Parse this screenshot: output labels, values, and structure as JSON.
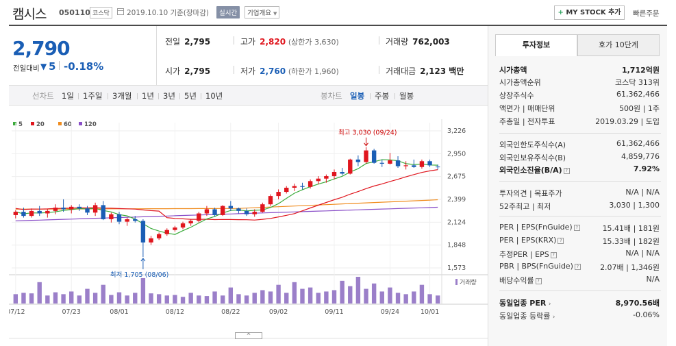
{
  "header": {
    "company_name": "캠시스",
    "stock_code": "050110",
    "market": "코스닥",
    "date_text": "2019.10.10  기준(장마감)",
    "realtime_label": "실시간",
    "overview_label": "기업개요",
    "overview_chevron": "▼",
    "mystock_plus": "+",
    "mystock_label": "MY STOCK 추가",
    "quick_order_label": "빠른주문"
  },
  "price": {
    "current": "2,790",
    "change_label": "전일대비",
    "change_arrow": "▼",
    "change_amount": "5",
    "change_pct": "-0.18%"
  },
  "stats": {
    "prev_close_label": "전일",
    "prev_close": "2,795",
    "high_label": "고가",
    "high": "2,820",
    "upper_limit": "(상한가 3,630)",
    "volume_label": "거래량",
    "volume": "762,003",
    "open_label": "시가",
    "open": "2,795",
    "low_label": "저가",
    "low": "2,760",
    "lower_limit": "(하한가 1,960)",
    "amount_label": "거래대금",
    "amount": "2,123 백만"
  },
  "chart_tabs": {
    "line_chart": "선차트",
    "periods": [
      "1일",
      "1주일",
      "3개월",
      "1년",
      "3년",
      "5년",
      "10년"
    ],
    "candle_chart": "봉차트",
    "candle_periods": [
      "일봉",
      "주봉",
      "월봉"
    ],
    "active_candle": "일봉"
  },
  "colors": {
    "up": "#e0161e",
    "down": "#1a5eb5",
    "ma5": "#3bab3b",
    "ma20": "#e0161e",
    "ma60": "#f08c1e",
    "ma120": "#8a4fc8",
    "volume": "#9b7fc9"
  },
  "chart_data": {
    "type": "candlestick",
    "legend": [
      "5",
      "20",
      "60",
      "120"
    ],
    "y_ticks": [
      3226,
      2950,
      2675,
      2399,
      2124,
      1848,
      1573
    ],
    "y_range": [
      1573,
      3226
    ],
    "x_labels": [
      "07/12",
      "07/23",
      "08/01",
      "08/12",
      "08/22",
      "09/02",
      "09/11",
      "09/24",
      "10/01"
    ],
    "x_label_index": [
      0,
      7,
      13,
      20,
      27,
      33,
      40,
      47,
      52
    ],
    "high_annotation": "최고 3,030 (09/24)",
    "low_annotation": "최저 1,705 (08/06)",
    "volume_legend": "거래량",
    "candles": [
      {
        "o": 2210,
        "h": 2270,
        "l": 2170,
        "c": 2250
      },
      {
        "o": 2250,
        "h": 2300,
        "l": 2180,
        "c": 2200
      },
      {
        "o": 2200,
        "h": 2290,
        "l": 2180,
        "c": 2260
      },
      {
        "o": 2260,
        "h": 2320,
        "l": 2200,
        "c": 2230
      },
      {
        "o": 2230,
        "h": 2280,
        "l": 2180,
        "c": 2260
      },
      {
        "o": 2260,
        "h": 2340,
        "l": 2220,
        "c": 2300
      },
      {
        "o": 2300,
        "h": 2400,
        "l": 2250,
        "c": 2280
      },
      {
        "o": 2280,
        "h": 2330,
        "l": 2230,
        "c": 2310
      },
      {
        "o": 2310,
        "h": 2340,
        "l": 2260,
        "c": 2290
      },
      {
        "o": 2290,
        "h": 2320,
        "l": 2210,
        "c": 2240
      },
      {
        "o": 2240,
        "h": 2360,
        "l": 2200,
        "c": 2330
      },
      {
        "o": 2330,
        "h": 2380,
        "l": 2150,
        "c": 2160
      },
      {
        "o": 2160,
        "h": 2240,
        "l": 2120,
        "c": 2220
      },
      {
        "o": 2220,
        "h": 2250,
        "l": 2100,
        "c": 2130
      },
      {
        "o": 2130,
        "h": 2180,
        "l": 2080,
        "c": 2160
      },
      {
        "o": 2160,
        "h": 2200,
        "l": 2120,
        "c": 2140
      },
      {
        "o": 2140,
        "h": 2160,
        "l": 1705,
        "c": 1880
      },
      {
        "o": 1880,
        "h": 1960,
        "l": 1850,
        "c": 1930
      },
      {
        "o": 1930,
        "h": 2000,
        "l": 1910,
        "c": 1980
      },
      {
        "o": 1980,
        "h": 2050,
        "l": 1960,
        "c": 2030
      },
      {
        "o": 2030,
        "h": 2080,
        "l": 2010,
        "c": 2060
      },
      {
        "o": 2060,
        "h": 2130,
        "l": 2040,
        "c": 2110
      },
      {
        "o": 2110,
        "h": 2160,
        "l": 2080,
        "c": 2140
      },
      {
        "o": 2140,
        "h": 2250,
        "l": 2120,
        "c": 2230
      },
      {
        "o": 2230,
        "h": 2320,
        "l": 2200,
        "c": 2280
      },
      {
        "o": 2280,
        "h": 2300,
        "l": 2190,
        "c": 2210
      },
      {
        "o": 2210,
        "h": 2330,
        "l": 2200,
        "c": 2320
      },
      {
        "o": 2320,
        "h": 2380,
        "l": 2260,
        "c": 2290
      },
      {
        "o": 2290,
        "h": 2300,
        "l": 2230,
        "c": 2260
      },
      {
        "o": 2260,
        "h": 2290,
        "l": 2200,
        "c": 2220
      },
      {
        "o": 2220,
        "h": 2280,
        "l": 2190,
        "c": 2250
      },
      {
        "o": 2250,
        "h": 2360,
        "l": 2240,
        "c": 2340
      },
      {
        "o": 2340,
        "h": 2460,
        "l": 2320,
        "c": 2440
      },
      {
        "o": 2440,
        "h": 2520,
        "l": 2400,
        "c": 2490
      },
      {
        "o": 2490,
        "h": 2560,
        "l": 2470,
        "c": 2540
      },
      {
        "o": 2540,
        "h": 2590,
        "l": 2500,
        "c": 2560
      },
      {
        "o": 2560,
        "h": 2600,
        "l": 2520,
        "c": 2550
      },
      {
        "o": 2550,
        "h": 2640,
        "l": 2530,
        "c": 2620
      },
      {
        "o": 2620,
        "h": 2680,
        "l": 2580,
        "c": 2650
      },
      {
        "o": 2650,
        "h": 2700,
        "l": 2600,
        "c": 2680
      },
      {
        "o": 2680,
        "h": 2760,
        "l": 2640,
        "c": 2730
      },
      {
        "o": 2730,
        "h": 2780,
        "l": 2690,
        "c": 2710
      },
      {
        "o": 2710,
        "h": 2890,
        "l": 2700,
        "c": 2880
      },
      {
        "o": 2880,
        "h": 2930,
        "l": 2800,
        "c": 2850
      },
      {
        "o": 2850,
        "h": 3030,
        "l": 2830,
        "c": 2990
      },
      {
        "o": 2990,
        "h": 3010,
        "l": 2830,
        "c": 2840
      },
      {
        "o": 2840,
        "h": 2880,
        "l": 2790,
        "c": 2830
      },
      {
        "o": 2830,
        "h": 2960,
        "l": 2820,
        "c": 2870
      },
      {
        "o": 2870,
        "h": 2920,
        "l": 2780,
        "c": 2800
      },
      {
        "o": 2800,
        "h": 2860,
        "l": 2760,
        "c": 2810
      },
      {
        "o": 2810,
        "h": 2880,
        "l": 2780,
        "c": 2790
      },
      {
        "o": 2790,
        "h": 2880,
        "l": 2770,
        "c": 2860
      },
      {
        "o": 2860,
        "h": 2880,
        "l": 2790,
        "c": 2810
      },
      {
        "o": 2795,
        "h": 2820,
        "l": 2760,
        "c": 2790
      }
    ],
    "volumes": [
      35,
      40,
      38,
      80,
      30,
      42,
      35,
      45,
      30,
      55,
      40,
      70,
      32,
      42,
      30,
      40,
      95,
      38,
      35,
      30,
      32,
      25,
      40,
      30,
      28,
      45,
      30,
      60,
      35,
      30,
      40,
      50,
      45,
      70,
      40,
      80,
      55,
      60,
      40,
      45,
      50,
      85,
      65,
      100,
      55,
      75,
      45,
      60,
      40,
      35,
      45,
      70,
      35,
      30
    ]
  },
  "right_panel": {
    "tab_invest": "투자정보",
    "tab_hoga": "호가 10단계",
    "market_cap_label": "시가총액",
    "market_cap": "1,712억원",
    "market_cap_rank_label": "시가총액순위",
    "market_cap_rank": "코스닥 313위",
    "listed_shares_label": "상장주식수",
    "listed_shares": "61,362,466",
    "face_value_label": "액면가 | 매매단위",
    "face_value": "500원 | 1주",
    "issue_date_label": "주총일 | 전자투표",
    "issue_date": "2019.03.29 | 도입",
    "foreign_limit_label": "외국인한도주식수(A)",
    "foreign_limit": "61,362,466",
    "foreign_holding_label": "외국인보유주식수(B)",
    "foreign_holding": "4,859,776",
    "foreign_ratio_label": "외국인소진율(B/A)",
    "foreign_ratio": "7.92%",
    "opinion_label": "투자의견 | 목표주가",
    "opinion": "N/A | N/A",
    "week52_label": "52주최고 | 최저",
    "week52": "3,030 | 1,300",
    "per_fn_label": "PER | EPS(FnGuide)",
    "per_fn": "15.41배 | 181원",
    "per_krx_label": "PER | EPS(KRX)",
    "per_krx": "15.33배 | 182원",
    "est_per_label": "추정PER | EPS",
    "est_per": "N/A | N/A",
    "pbr_label": "PBR | BPS(FnGuide)",
    "pbr": "2.07배 | 1,346원",
    "dividend_label": "배당수익률",
    "dividend": "N/A",
    "sector_per_label": "동일업종 PER",
    "sector_per": "8,970.56배",
    "sector_change_label": "동일업종 등락률",
    "sector_change": "-0.06%",
    "help_glyph": "?"
  },
  "chart_toggle": "^"
}
